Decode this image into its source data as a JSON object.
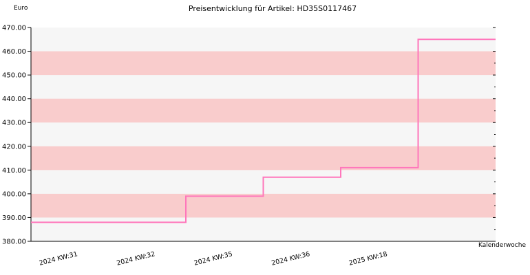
{
  "chart_data": {
    "type": "line",
    "step": true,
    "title": "Preisentwicklung für Artikel: HD35S0117467",
    "xlabel": "Kalenderwoche",
    "ylabel": "Euro",
    "categories": [
      "2024 KW:31",
      "2024 KW:32",
      "2024 KW:35",
      "2024 KW:36",
      "2025 KW:18"
    ],
    "series": [
      {
        "values": [
          388.0,
          399.0,
          407.0,
          411.0,
          465.0
        ]
      }
    ],
    "ylim": [
      380,
      470
    ],
    "yticks": [
      "380.00",
      "390.00",
      "400.00",
      "410.00",
      "420.00",
      "430.00",
      "440.00",
      "450.00",
      "460.00",
      "470.00"
    ],
    "grid": false,
    "background_bands": true,
    "legend": "none",
    "colors": {
      "line": "#ff77bb",
      "band": "#f9cccc",
      "plot_bg": "#f6f6f6",
      "axis": "#000000"
    }
  }
}
